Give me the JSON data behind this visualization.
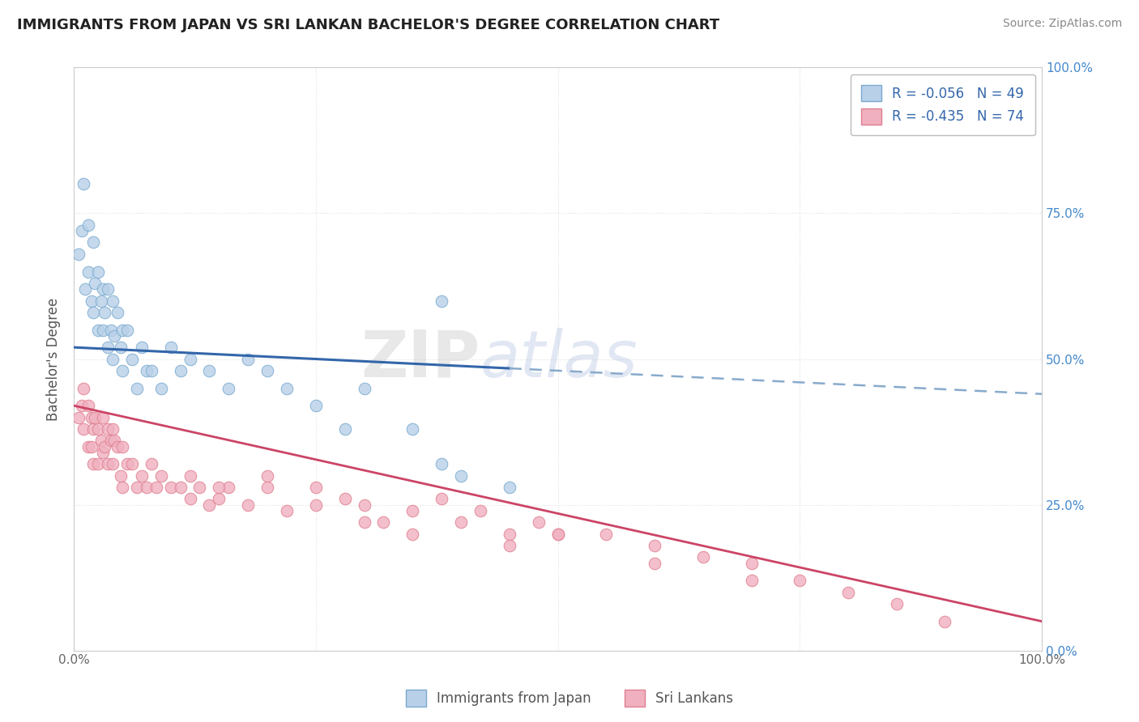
{
  "title": "IMMIGRANTS FROM JAPAN VS SRI LANKAN BACHELOR'S DEGREE CORRELATION CHART",
  "source": "Source: ZipAtlas.com",
  "ylabel": "Bachelor's Degree",
  "watermark_zip": "ZIP",
  "watermark_atlas": "atlas",
  "xlim": [
    0.0,
    1.0
  ],
  "ylim": [
    0.0,
    1.0
  ],
  "right_ytick_labels": [
    "0.0%",
    "25.0%",
    "50.0%",
    "75.0%",
    "100.0%"
  ],
  "ytick_positions": [
    0.0,
    0.25,
    0.5,
    0.75,
    1.0
  ],
  "japan_color": "#b8d0e8",
  "japan_edge": "#7aaad0",
  "srilanka_color": "#f0b0c0",
  "srilanka_edge": "#e08090",
  "japan_line_color": "#3366aa",
  "japan_line_dash_color": "#88aacc",
  "srilanka_line_color": "#cc4466",
  "grid_color": "#e0e0e0",
  "grid_linestyle": "dotted",
  "background_color": "#ffffff",
  "japan_line_solid_end": 0.45,
  "japan_line_y_start": 0.52,
  "japan_line_y_at_solid_end": 0.47,
  "japan_line_y_end": 0.44,
  "srilanka_line_y_start": 0.42,
  "srilanka_line_y_end": 0.05,
  "japan_scatter_x": [
    0.005,
    0.008,
    0.01,
    0.012,
    0.015,
    0.015,
    0.018,
    0.02,
    0.02,
    0.022,
    0.025,
    0.025,
    0.028,
    0.03,
    0.03,
    0.032,
    0.035,
    0.035,
    0.038,
    0.04,
    0.04,
    0.042,
    0.045,
    0.048,
    0.05,
    0.05,
    0.055,
    0.06,
    0.065,
    0.07,
    0.075,
    0.08,
    0.09,
    0.1,
    0.11,
    0.12,
    0.14,
    0.16,
    0.18,
    0.2,
    0.22,
    0.25,
    0.28,
    0.3,
    0.35,
    0.4,
    0.38,
    0.45,
    0.38
  ],
  "japan_scatter_y": [
    0.68,
    0.72,
    0.8,
    0.62,
    0.73,
    0.65,
    0.6,
    0.7,
    0.58,
    0.63,
    0.65,
    0.55,
    0.6,
    0.62,
    0.55,
    0.58,
    0.62,
    0.52,
    0.55,
    0.6,
    0.5,
    0.54,
    0.58,
    0.52,
    0.55,
    0.48,
    0.55,
    0.5,
    0.45,
    0.52,
    0.48,
    0.48,
    0.45,
    0.52,
    0.48,
    0.5,
    0.48,
    0.45,
    0.5,
    0.48,
    0.45,
    0.42,
    0.38,
    0.45,
    0.38,
    0.3,
    0.32,
    0.28,
    0.6
  ],
  "srilanka_scatter_x": [
    0.005,
    0.008,
    0.01,
    0.01,
    0.015,
    0.015,
    0.018,
    0.018,
    0.02,
    0.02,
    0.022,
    0.025,
    0.025,
    0.028,
    0.03,
    0.03,
    0.032,
    0.035,
    0.035,
    0.038,
    0.04,
    0.04,
    0.042,
    0.045,
    0.048,
    0.05,
    0.05,
    0.055,
    0.06,
    0.065,
    0.07,
    0.075,
    0.08,
    0.085,
    0.09,
    0.1,
    0.11,
    0.12,
    0.13,
    0.14,
    0.15,
    0.16,
    0.18,
    0.2,
    0.22,
    0.25,
    0.28,
    0.3,
    0.32,
    0.35,
    0.38,
    0.4,
    0.42,
    0.45,
    0.48,
    0.5,
    0.55,
    0.6,
    0.65,
    0.7,
    0.75,
    0.8,
    0.85,
    0.9,
    0.3,
    0.35,
    0.45,
    0.5,
    0.6,
    0.7,
    0.12,
    0.15,
    0.2,
    0.25
  ],
  "srilanka_scatter_y": [
    0.4,
    0.42,
    0.45,
    0.38,
    0.42,
    0.35,
    0.4,
    0.35,
    0.38,
    0.32,
    0.4,
    0.38,
    0.32,
    0.36,
    0.4,
    0.34,
    0.35,
    0.38,
    0.32,
    0.36,
    0.38,
    0.32,
    0.36,
    0.35,
    0.3,
    0.35,
    0.28,
    0.32,
    0.32,
    0.28,
    0.3,
    0.28,
    0.32,
    0.28,
    0.3,
    0.28,
    0.28,
    0.26,
    0.28,
    0.25,
    0.26,
    0.28,
    0.25,
    0.28,
    0.24,
    0.25,
    0.26,
    0.25,
    0.22,
    0.24,
    0.26,
    0.22,
    0.24,
    0.2,
    0.22,
    0.2,
    0.2,
    0.18,
    0.16,
    0.15,
    0.12,
    0.1,
    0.08,
    0.05,
    0.22,
    0.2,
    0.18,
    0.2,
    0.15,
    0.12,
    0.3,
    0.28,
    0.3,
    0.28
  ]
}
